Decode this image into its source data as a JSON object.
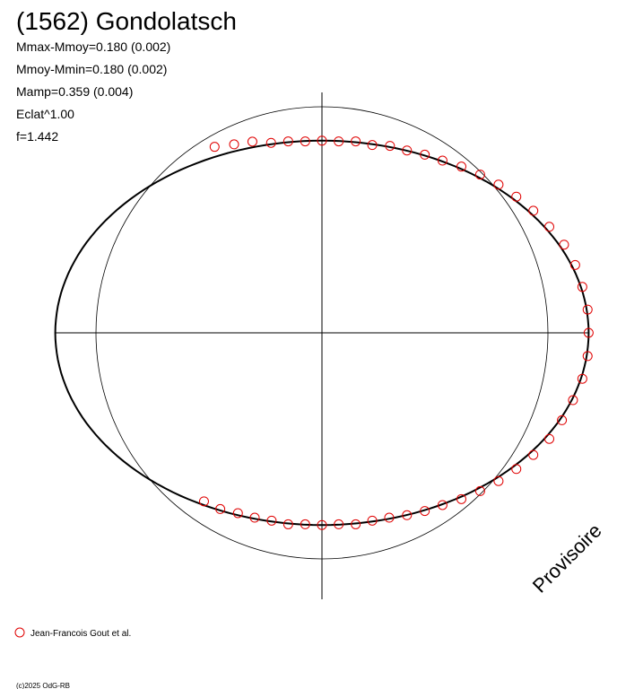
{
  "chart_data": {
    "type": "polar",
    "title": "(1562) Gondolatsch",
    "info": [
      "Mmax-Mmoy=0.180 (0.002)",
      "Mmoy-Mmin=0.180 (0.002)",
      "Mamp=0.359 (0.004)",
      "Eclat^1.00",
      "f=1.442"
    ],
    "watermark": "Provisoire",
    "footer": "(c)2025 OdG-RB",
    "model": {
      "a": 1.18,
      "b": 0.85,
      "color": "#000000"
    },
    "reference_circle": 1,
    "series": [
      {
        "name": "Jean-Francois Gout et al.",
        "color": "#e00000",
        "x": [
          120,
          115,
          110,
          105,
          100,
          95,
          90,
          85,
          80,
          75,
          70,
          65,
          60,
          55,
          50,
          45,
          40,
          35,
          30,
          25,
          20,
          15,
          10,
          5,
          0,
          -5,
          -10,
          -15,
          -20,
          -25,
          -30,
          -35,
          -40,
          -45,
          -50,
          -55,
          -60,
          -65,
          -70,
          -75,
          -80,
          -85,
          -90,
          -95,
          -100,
          -105,
          -110,
          -115,
          -120,
          -125
        ],
        "values": [
          0.95,
          0.92,
          0.9,
          0.87,
          0.86,
          0.85,
          0.85,
          0.85,
          0.86,
          0.86,
          0.88,
          0.89,
          0.91,
          0.93,
          0.96,
          0.99,
          1.02,
          1.05,
          1.08,
          1.11,
          1.14,
          1.16,
          1.17,
          1.18,
          1.18,
          1.18,
          1.17,
          1.15,
          1.13,
          1.11,
          1.08,
          1.05,
          1.02,
          0.99,
          0.96,
          0.93,
          0.91,
          0.89,
          0.87,
          0.86,
          0.86,
          0.85,
          0.85,
          0.85,
          0.86,
          0.86,
          0.87,
          0.88,
          0.9,
          0.91
        ]
      }
    ]
  }
}
